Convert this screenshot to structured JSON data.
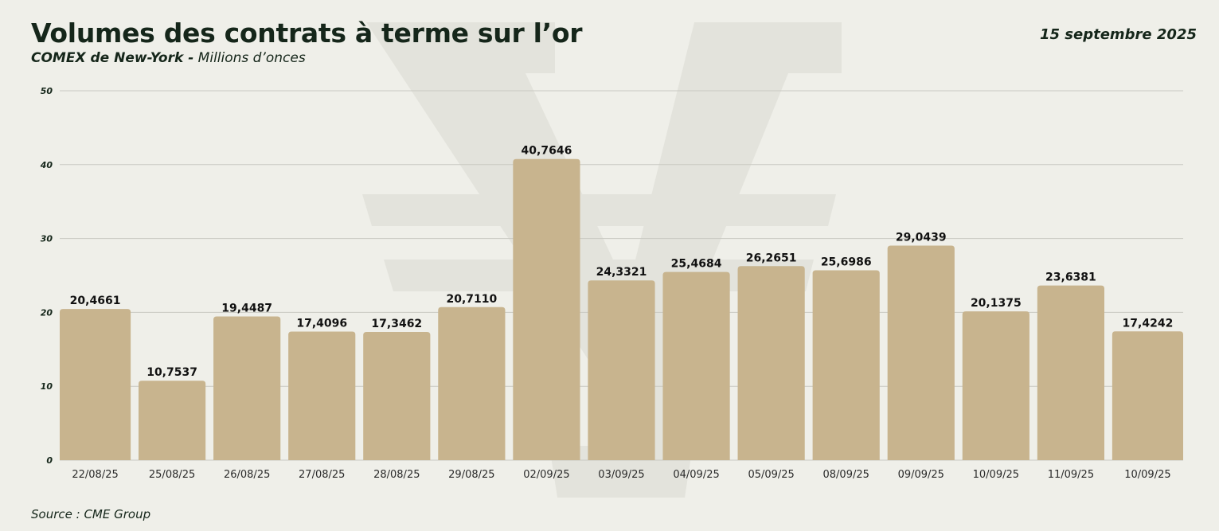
{
  "header": {
    "title": "Volumes des contrats à terme sur l’or",
    "subtitle_bold": "COMEX de New-York -",
    "subtitle_italic": "Millions d’onces",
    "date": "15 septembre 2025"
  },
  "footer": {
    "source": "Source : CME Group"
  },
  "colors": {
    "bar": "#c8b48e",
    "grid": "#c9c9c2",
    "text": "#15261a",
    "background": "#efefe9",
    "watermark": "#e3e3dc"
  },
  "chart_data": {
    "type": "bar",
    "categories": [
      "22/08/25",
      "25/08/25",
      "26/08/25",
      "27/08/25",
      "28/08/25",
      "29/08/25",
      "02/09/25",
      "03/09/25",
      "04/09/25",
      "05/09/25",
      "08/09/25",
      "09/09/25",
      "10/09/25",
      "11/09/25",
      "10/09/25"
    ],
    "values": [
      20.4661,
      10.7537,
      19.4487,
      17.4096,
      17.3462,
      20.711,
      40.7646,
      24.3321,
      25.4684,
      26.2651,
      25.6986,
      29.0439,
      20.1375,
      23.6381,
      17.4242
    ],
    "value_labels": [
      "20,4661",
      "10,7537",
      "19,4487",
      "17,4096",
      "17,3462",
      "20,7110",
      "40,7646",
      "24,3321",
      "25,4684",
      "26,2651",
      "25,6986",
      "29,0439",
      "20,1375",
      "23,6381",
      "17,4242"
    ],
    "yticks": [
      0,
      10,
      20,
      30,
      40,
      50
    ],
    "ylim": [
      0,
      50
    ],
    "grid": true,
    "legend": "none"
  }
}
